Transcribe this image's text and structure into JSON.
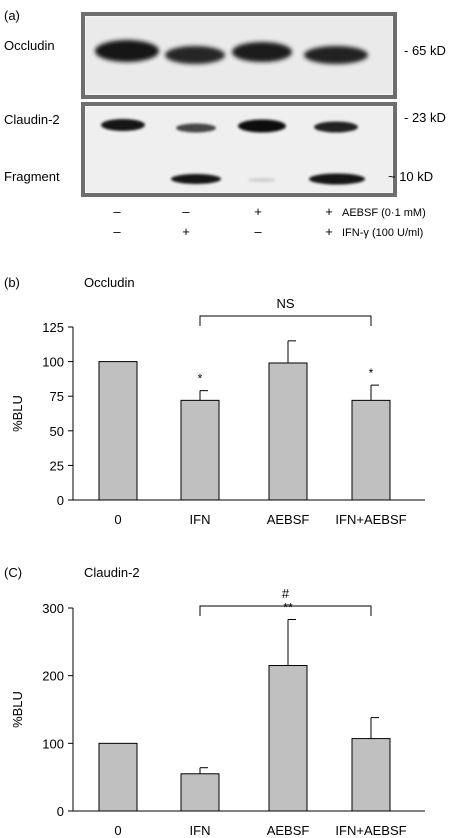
{
  "panel_a": {
    "label": "(a)",
    "occludin_label": "Occludin",
    "occludin_kd": "- 65 kD",
    "claudin_label": "Claudin-2",
    "claudin_kd": "- 23 kD",
    "fragment_label": "Fragment",
    "fragment_kd": "~ 10 kD",
    "aebsf_row": [
      "–",
      "–",
      "+",
      "+"
    ],
    "aebsf_label": "AEBSF (0·1 mM)",
    "ifn_row": [
      "–",
      "+",
      "–",
      "+"
    ],
    "ifn_label": "IFN-γ (100 U/ml)"
  },
  "chart_data": [
    {
      "panel": "(b)",
      "type": "bar",
      "title": "Occludin",
      "ylabel": "%BLU",
      "categories": [
        "0",
        "IFN",
        "AEBSF",
        "IFN+AEBSF"
      ],
      "values": [
        100,
        72,
        99,
        72
      ],
      "errors": [
        0,
        7,
        16,
        11
      ],
      "ylim": [
        0,
        125
      ],
      "yticks": [
        "0",
        "25",
        "50",
        "75",
        "100",
        "125"
      ],
      "yticks_values": [
        0,
        25,
        50,
        75,
        100,
        125
      ],
      "markers": [
        "",
        "*",
        "",
        "*"
      ],
      "bracket_label": "NS",
      "bracket_from": 1,
      "bracket_to": 3,
      "bar_color": "#c0c0c0",
      "grid": false
    },
    {
      "panel": "(C)",
      "type": "bar",
      "title": "Claudin-2",
      "ylabel": "%BLU",
      "categories": [
        "0",
        "IFN",
        "AEBSF",
        "IFN+AEBSF"
      ],
      "values": [
        100,
        55,
        215,
        107
      ],
      "errors": [
        0,
        9,
        68,
        31
      ],
      "ylim": [
        0,
        300
      ],
      "yticks": [
        "0",
        "100",
        "200",
        "300"
      ],
      "yticks_values": [
        0,
        100,
        200,
        300
      ],
      "markers": [
        "",
        "",
        "**",
        ""
      ],
      "bracket_label": "#",
      "bracket_from": 1,
      "bracket_to": 3,
      "bar_color": "#c0c0c0",
      "grid": false
    }
  ]
}
